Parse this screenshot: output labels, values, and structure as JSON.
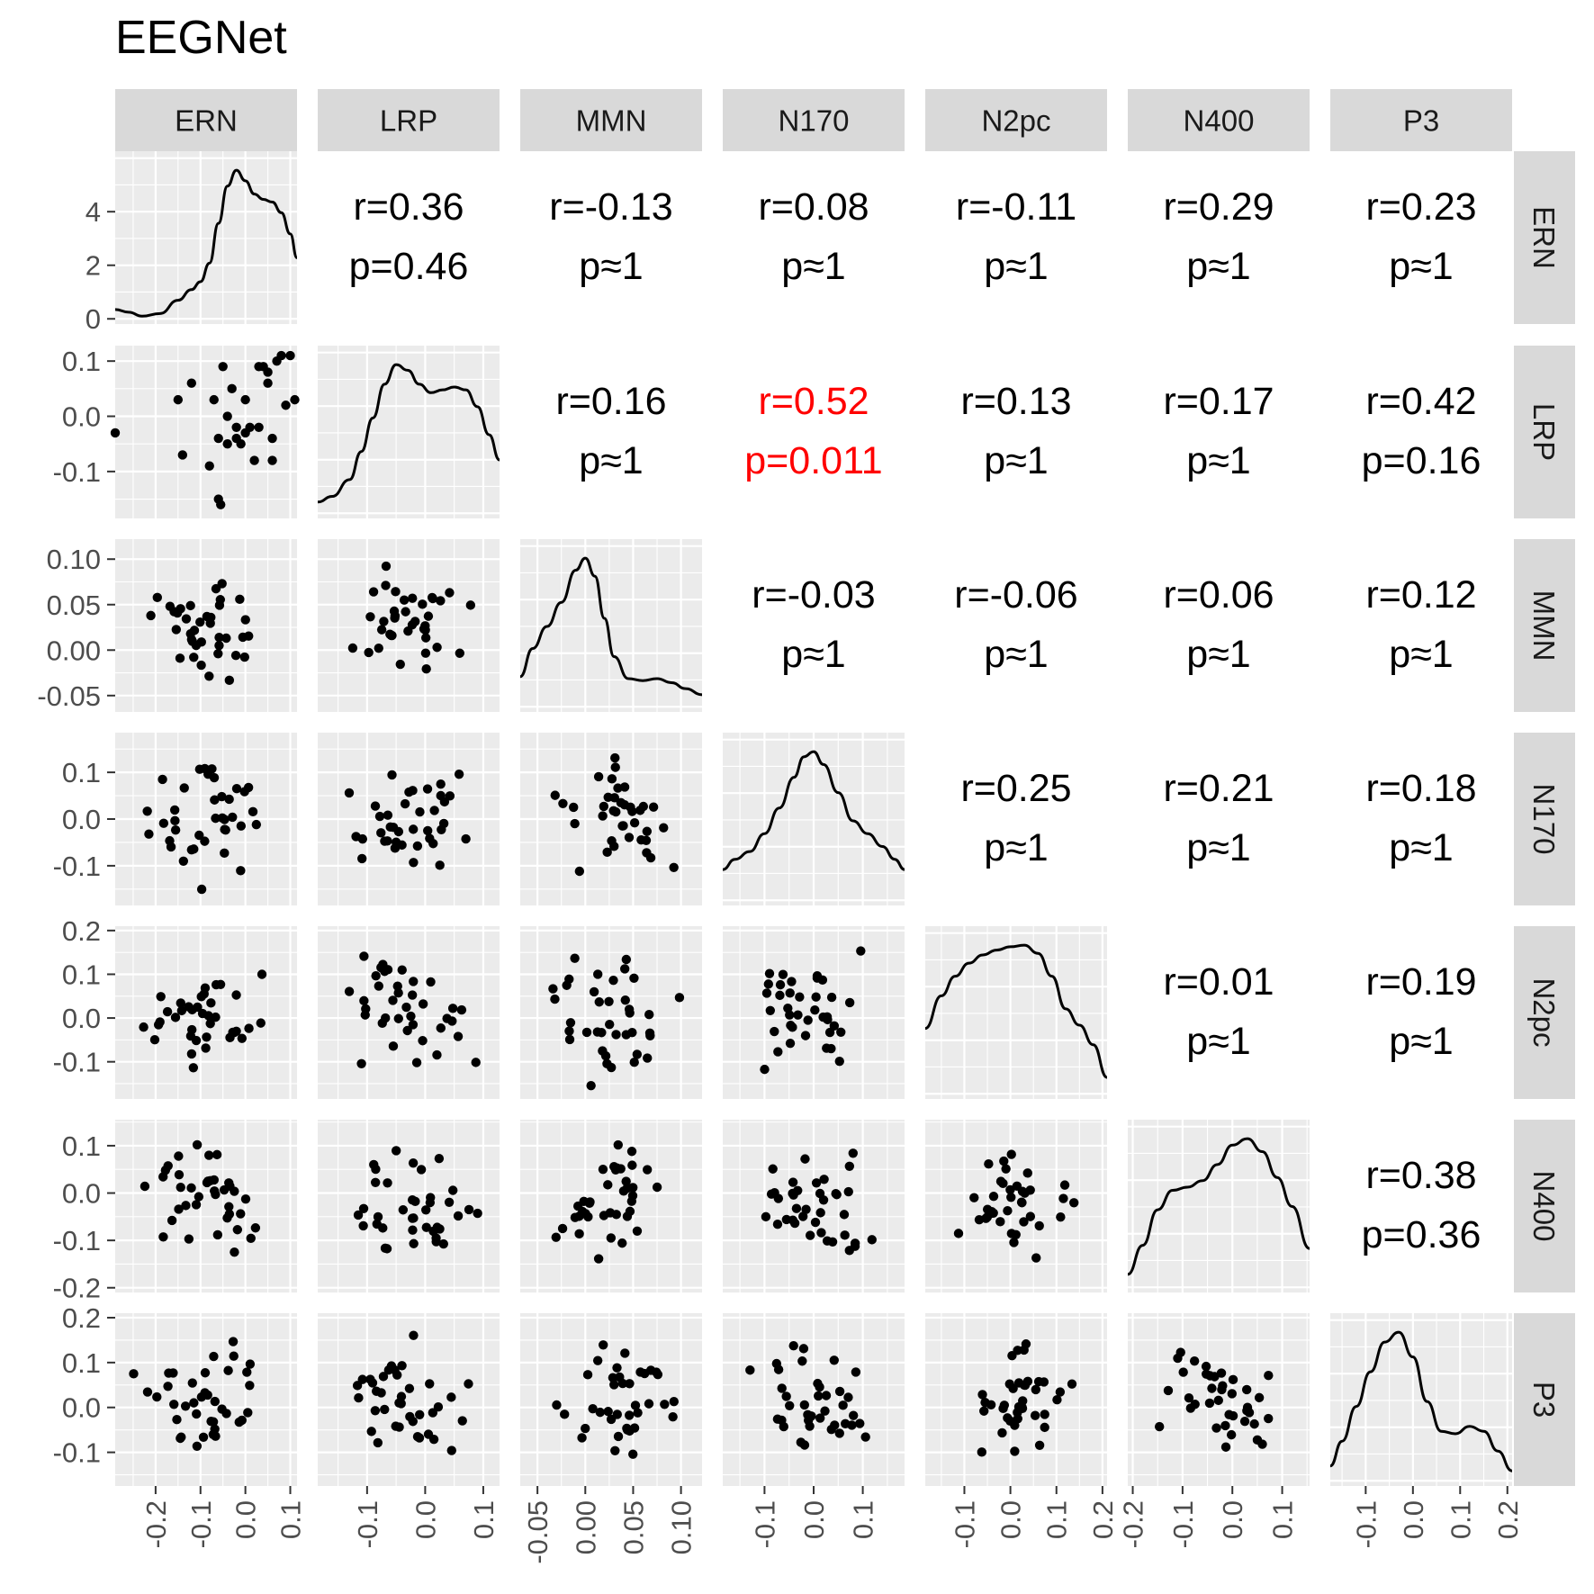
{
  "title": "EEGNet",
  "colors": {
    "panel_bg": "#EBEBEB",
    "grid": "#FFFFFF",
    "strip_bg": "#D9D9D9",
    "point": "#000000",
    "significant": "#FF0000",
    "axis_text": "#4D4D4D"
  },
  "chart_data": {
    "type": "scatter",
    "matrix_type": "pairs",
    "variables": [
      "ERN",
      "LRP",
      "MMN",
      "N170",
      "N2pc",
      "N400",
      "P3"
    ],
    "density_y_axis": {
      "ticks": [
        0,
        2,
        4
      ],
      "tick_labels": [
        "0",
        "2",
        "4"
      ]
    },
    "axes": {
      "ERN": {
        "range": [
          -0.29,
          0.115
        ],
        "ticks": [
          -0.2,
          -0.1,
          0.0,
          0.1
        ],
        "tick_labels": [
          "-0.2",
          "-0.1",
          "0.0",
          "0.1"
        ]
      },
      "LRP": {
        "range": [
          -0.185,
          0.128
        ],
        "ticks": [
          -0.1,
          0.0,
          0.1
        ],
        "tick_labels": [
          "-0.1",
          "0.0",
          "0.1"
        ]
      },
      "MMN": {
        "range": [
          -0.068,
          0.122
        ],
        "ticks": [
          -0.05,
          0.0,
          0.05,
          0.1
        ],
        "tick_labels": [
          "-0.05",
          "0.00",
          "0.05",
          "0.10"
        ],
        "y_tick_labels": [
          "-0.05",
          "0.00",
          "0.05",
          "0.10"
        ]
      },
      "N170": {
        "range": [
          -0.185,
          0.185
        ],
        "ticks": [
          -0.1,
          0.0,
          0.1
        ],
        "tick_labels": [
          "-0.1",
          "0.0",
          "0.1"
        ]
      },
      "N2pc": {
        "range": [
          -0.185,
          0.21
        ],
        "ticks": [
          -0.1,
          0.0,
          0.1,
          0.2
        ],
        "tick_labels": [
          "-0.1",
          "0.0",
          "0.1",
          "0.2"
        ]
      },
      "N400": {
        "range": [
          -0.21,
          0.155
        ],
        "ticks": [
          -0.2,
          -0.1,
          0.0,
          0.1
        ],
        "tick_labels": [
          "-0.2",
          "-0.1",
          "0.0",
          "0.1"
        ]
      },
      "P3": {
        "range": [
          -0.175,
          0.21
        ],
        "ticks": [
          -0.1,
          0.0,
          0.1,
          0.2
        ],
        "tick_labels": [
          "-0.1",
          "0.0",
          "0.1",
          "0.2"
        ]
      }
    },
    "correlations": [
      {
        "row": "ERN",
        "col": "LRP",
        "r": "r=0.36",
        "p": "p=0.46",
        "significant": false
      },
      {
        "row": "ERN",
        "col": "MMN",
        "r": "r=-0.13",
        "p": "p≈1",
        "significant": false
      },
      {
        "row": "ERN",
        "col": "N170",
        "r": "r=0.08",
        "p": "p≈1",
        "significant": false
      },
      {
        "row": "ERN",
        "col": "N2pc",
        "r": "r=-0.11",
        "p": "p≈1",
        "significant": false
      },
      {
        "row": "ERN",
        "col": "N400",
        "r": "r=0.29",
        "p": "p≈1",
        "significant": false
      },
      {
        "row": "ERN",
        "col": "P3",
        "r": "r=0.23",
        "p": "p≈1",
        "significant": false
      },
      {
        "row": "LRP",
        "col": "MMN",
        "r": "r=0.16",
        "p": "p≈1",
        "significant": false
      },
      {
        "row": "LRP",
        "col": "N170",
        "r": "r=0.52",
        "p": "p=0.011",
        "significant": true
      },
      {
        "row": "LRP",
        "col": "N2pc",
        "r": "r=0.13",
        "p": "p≈1",
        "significant": false
      },
      {
        "row": "LRP",
        "col": "N400",
        "r": "r=0.17",
        "p": "p≈1",
        "significant": false
      },
      {
        "row": "LRP",
        "col": "P3",
        "r": "r=0.42",
        "p": "p=0.16",
        "significant": false
      },
      {
        "row": "MMN",
        "col": "N170",
        "r": "r=-0.03",
        "p": "p≈1",
        "significant": false
      },
      {
        "row": "MMN",
        "col": "N2pc",
        "r": "r=-0.06",
        "p": "p≈1",
        "significant": false
      },
      {
        "row": "MMN",
        "col": "N400",
        "r": "r=0.06",
        "p": "p≈1",
        "significant": false
      },
      {
        "row": "MMN",
        "col": "P3",
        "r": "r=0.12",
        "p": "p≈1",
        "significant": false
      },
      {
        "row": "N170",
        "col": "N2pc",
        "r": "r=0.25",
        "p": "p≈1",
        "significant": false
      },
      {
        "row": "N170",
        "col": "N400",
        "r": "r=0.21",
        "p": "p≈1",
        "significant": false
      },
      {
        "row": "N170",
        "col": "P3",
        "r": "r=0.18",
        "p": "p≈1",
        "significant": false
      },
      {
        "row": "N2pc",
        "col": "N400",
        "r": "r=0.01",
        "p": "p≈1",
        "significant": false
      },
      {
        "row": "N2pc",
        "col": "P3",
        "r": "r=0.19",
        "p": "p≈1",
        "significant": false
      },
      {
        "row": "N400",
        "col": "P3",
        "r": "r=0.38",
        "p": "p=0.36",
        "significant": false
      }
    ],
    "densities": [
      {
        "var": "ERN",
        "x": [
          -0.29,
          -0.26,
          -0.23,
          -0.19,
          -0.15,
          -0.12,
          -0.1,
          -0.08,
          -0.06,
          -0.04,
          -0.02,
          0.0,
          0.02,
          0.04,
          0.06,
          0.08,
          0.1,
          0.115
        ],
        "y": [
          0.35,
          0.25,
          0.1,
          0.2,
          0.7,
          1.1,
          1.4,
          2.1,
          3.6,
          5.0,
          5.6,
          5.2,
          4.7,
          4.5,
          4.4,
          4.0,
          3.2,
          2.3
        ]
      },
      {
        "var": "LRP",
        "x": [
          -0.185,
          -0.16,
          -0.13,
          -0.11,
          -0.09,
          -0.07,
          -0.05,
          -0.03,
          -0.01,
          0.01,
          0.03,
          0.05,
          0.07,
          0.09,
          0.11,
          0.128
        ],
        "y": [
          0.4,
          0.6,
          1.2,
          2.2,
          3.4,
          4.6,
          5.3,
          5.1,
          4.6,
          4.3,
          4.4,
          4.5,
          4.4,
          3.8,
          2.8,
          1.9
        ]
      },
      {
        "var": "MMN",
        "x": [
          -0.068,
          -0.055,
          -0.04,
          -0.025,
          -0.01,
          0.0,
          0.01,
          0.02,
          0.03,
          0.045,
          0.06,
          0.075,
          0.09,
          0.105,
          0.122
        ],
        "y": [
          1.5,
          2.9,
          4.0,
          5.2,
          6.8,
          7.4,
          6.5,
          4.4,
          2.5,
          1.4,
          1.3,
          1.4,
          1.2,
          0.9,
          0.6
        ]
      },
      {
        "var": "N170",
        "x": [
          -0.185,
          -0.16,
          -0.13,
          -0.1,
          -0.07,
          -0.04,
          -0.02,
          0.0,
          0.02,
          0.05,
          0.08,
          0.11,
          0.14,
          0.165,
          0.185
        ],
        "y": [
          1.2,
          1.6,
          1.9,
          2.6,
          3.6,
          4.8,
          5.6,
          5.8,
          5.3,
          4.2,
          3.1,
          2.6,
          2.1,
          1.6,
          1.2
        ]
      },
      {
        "var": "N2pc",
        "x": [
          -0.185,
          -0.15,
          -0.12,
          -0.09,
          -0.06,
          -0.03,
          0.0,
          0.03,
          0.06,
          0.09,
          0.12,
          0.15,
          0.18,
          0.21
        ],
        "y": [
          2.0,
          3.0,
          3.6,
          4.0,
          4.25,
          4.4,
          4.5,
          4.55,
          4.3,
          3.6,
          2.6,
          2.1,
          1.5,
          0.5
        ]
      },
      {
        "var": "N400",
        "x": [
          -0.21,
          -0.18,
          -0.15,
          -0.12,
          -0.09,
          -0.06,
          -0.03,
          0.0,
          0.03,
          0.06,
          0.09,
          0.12,
          0.155
        ],
        "y": [
          0.4,
          1.3,
          2.4,
          3.0,
          3.1,
          3.3,
          3.8,
          4.4,
          4.6,
          4.2,
          3.4,
          2.5,
          1.2
        ]
      },
      {
        "var": "P3",
        "x": [
          -0.175,
          -0.15,
          -0.12,
          -0.09,
          -0.06,
          -0.03,
          0.0,
          0.03,
          0.06,
          0.09,
          0.12,
          0.15,
          0.18,
          0.21
        ],
        "y": [
          0.6,
          1.6,
          3.0,
          4.4,
          5.6,
          6.0,
          5.0,
          3.2,
          2.0,
          1.9,
          2.2,
          2.0,
          1.2,
          0.4
        ]
      }
    ],
    "scatter_rows": {
      "LRP": {
        "ERN": [
          [
            -0.29,
            -0.03
          ],
          [
            -0.15,
            0.03
          ],
          [
            -0.14,
            -0.07
          ],
          [
            -0.12,
            0.06
          ],
          [
            -0.08,
            -0.09
          ],
          [
            -0.07,
            0.03
          ],
          [
            -0.06,
            -0.04
          ],
          [
            -0.06,
            -0.15
          ],
          [
            -0.055,
            -0.16
          ],
          [
            -0.05,
            0.09
          ],
          [
            -0.04,
            -0.05
          ],
          [
            -0.03,
            0.05
          ],
          [
            -0.02,
            -0.04
          ],
          [
            -0.02,
            -0.02
          ],
          [
            0.0,
            0.03
          ],
          [
            0.0,
            -0.03
          ],
          [
            0.01,
            -0.02
          ],
          [
            0.02,
            -0.08
          ],
          [
            0.03,
            0.09
          ],
          [
            0.04,
            0.09
          ],
          [
            0.05,
            0.08
          ],
          [
            0.05,
            0.06
          ],
          [
            0.06,
            -0.08
          ],
          [
            0.07,
            0.1
          ],
          [
            0.08,
            0.11
          ],
          [
            0.09,
            0.02
          ],
          [
            0.1,
            0.11
          ],
          [
            0.11,
            0.03
          ],
          [
            0.03,
            -0.02
          ],
          [
            -0.01,
            -0.05
          ],
          [
            0.06,
            -0.04
          ],
          [
            -0.04,
            0.0
          ]
        ]
      }
    }
  }
}
